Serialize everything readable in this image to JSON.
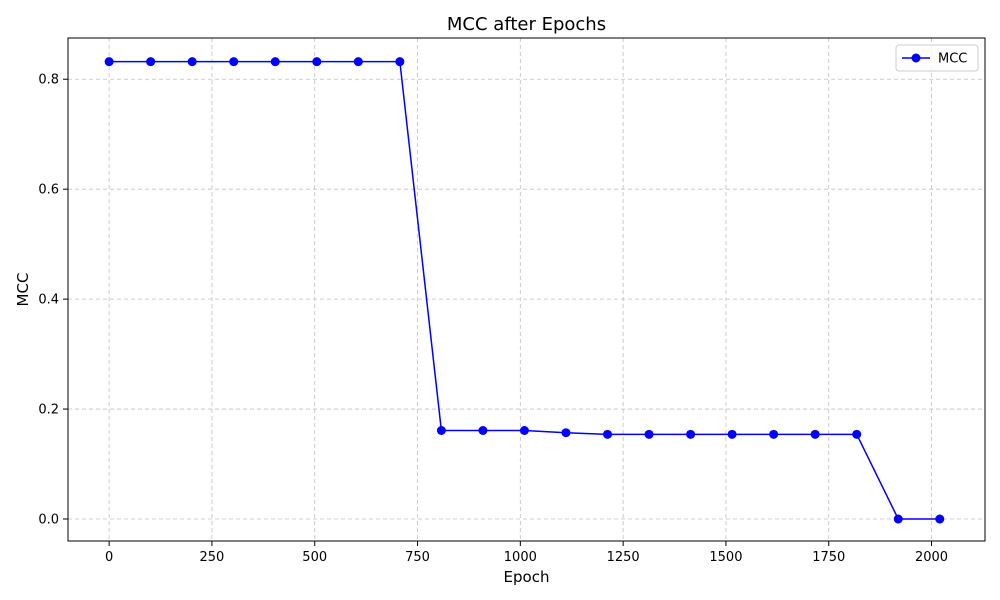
{
  "chart_data": {
    "type": "line",
    "title": "MCC after Epochs",
    "xlabel": "Epoch",
    "ylabel": "MCC",
    "xlim": [
      -100,
      2130
    ],
    "ylim": [
      -0.04,
      0.875
    ],
    "xticks": [
      0,
      250,
      500,
      750,
      1000,
      1250,
      1500,
      1750,
      2000
    ],
    "yticks": [
      0.0,
      0.2,
      0.4,
      0.6,
      0.8
    ],
    "ytick_labels": [
      "0.0",
      "0.2",
      "0.4",
      "0.6",
      "0.8"
    ],
    "grid": true,
    "legend_position": "top-right",
    "series": [
      {
        "name": "MCC",
        "color": "#0000ff",
        "marker": "circle",
        "x": [
          0,
          101,
          202,
          303,
          404,
          505,
          606,
          707,
          808,
          909,
          1010,
          1111,
          1212,
          1313,
          1414,
          1515,
          1616,
          1717,
          1818,
          1919,
          2020
        ],
        "y": [
          0.832,
          0.832,
          0.832,
          0.832,
          0.832,
          0.832,
          0.832,
          0.832,
          0.161,
          0.161,
          0.161,
          0.157,
          0.154,
          0.154,
          0.154,
          0.154,
          0.154,
          0.154,
          0.154,
          0.0,
          0.0
        ]
      }
    ]
  }
}
